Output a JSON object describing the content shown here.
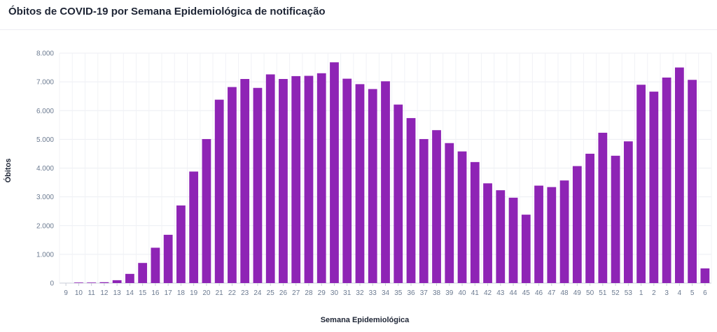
{
  "chart_data": {
    "type": "bar",
    "title": "Óbitos de COVID-19 por Semana Epidemiológica de notificação",
    "xlabel": "Semana Epidemiológica",
    "ylabel": "Óbitos",
    "ylim": [
      0,
      8000
    ],
    "yticks": [
      "0",
      "1.000",
      "2.000",
      "3.000",
      "4.000",
      "5.000",
      "6.000",
      "7.000",
      "8.000"
    ],
    "grid": true,
    "legend": "none",
    "bar_color": "#8e24b5",
    "categories": [
      "9",
      "10",
      "11",
      "12",
      "13",
      "14",
      "15",
      "16",
      "17",
      "18",
      "19",
      "20",
      "21",
      "22",
      "23",
      "24",
      "25",
      "26",
      "27",
      "28",
      "29",
      "30",
      "31",
      "32",
      "33",
      "34",
      "35",
      "36",
      "37",
      "38",
      "39",
      "40",
      "41",
      "42",
      "43",
      "44",
      "45",
      "46",
      "47",
      "48",
      "49",
      "50",
      "51",
      "52",
      "53",
      "1",
      "2",
      "3",
      "4",
      "5",
      "6"
    ],
    "values": [
      0,
      2,
      10,
      30,
      100,
      320,
      700,
      1230,
      1680,
      2700,
      3880,
      5010,
      6380,
      6820,
      7100,
      6790,
      7260,
      7100,
      7200,
      7210,
      7300,
      7680,
      7110,
      6920,
      6750,
      7020,
      6210,
      5740,
      5010,
      5320,
      4870,
      4580,
      4210,
      3470,
      3230,
      2970,
      2380,
      3390,
      3340,
      3570,
      4070,
      4500,
      5230,
      4430,
      4930,
      6900,
      6660,
      7150,
      7500,
      7070,
      510
    ]
  }
}
